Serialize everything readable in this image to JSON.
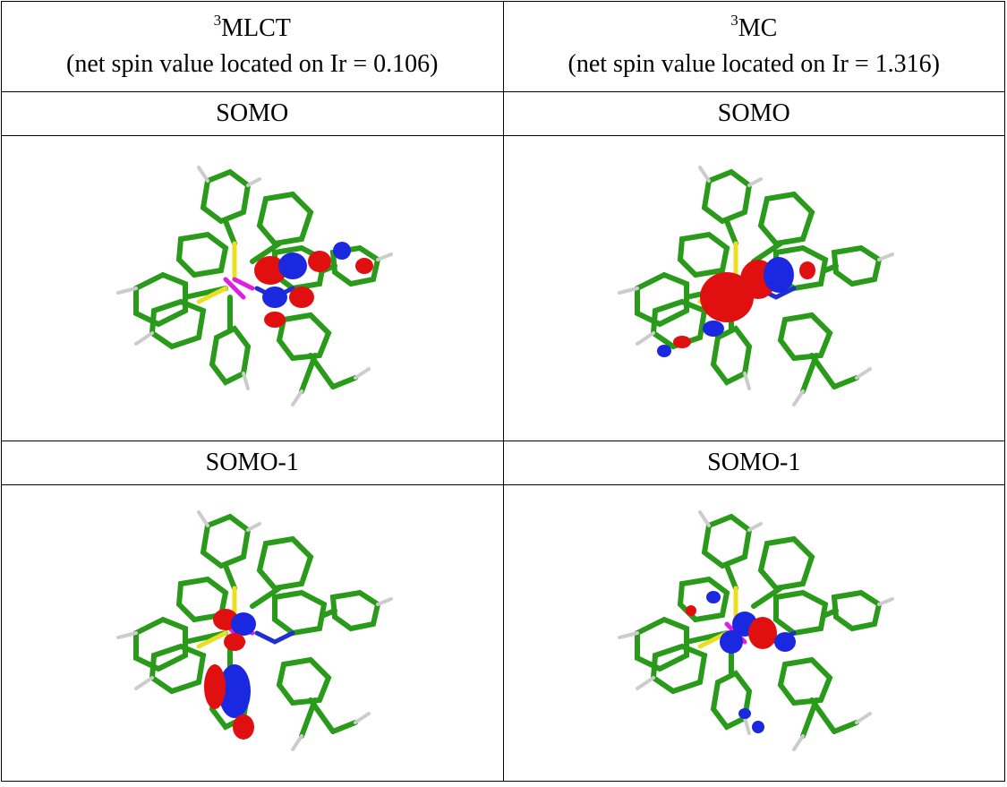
{
  "table": {
    "columns": [
      {
        "superscript": "3",
        "label": "MLCT",
        "note": "(net spin value located on Ir = 0.106)"
      },
      {
        "superscript": "3",
        "label": "MC",
        "note": "(net spin value located on Ir = 1.316)"
      }
    ],
    "rows": [
      [
        "SOMO",
        "SOMO"
      ],
      [
        "SOMO-1",
        "SOMO-1"
      ]
    ]
  }
}
